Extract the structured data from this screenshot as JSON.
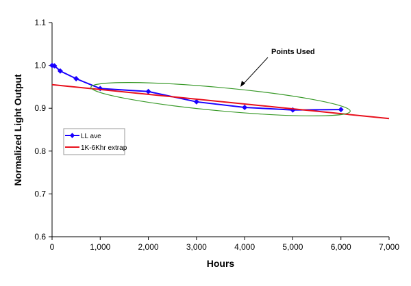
{
  "chart_data": {
    "type": "line",
    "title": "",
    "xlabel": "Hours",
    "ylabel": "Normalized Light Output",
    "xlim": [
      0,
      7000
    ],
    "ylim": [
      0.6,
      1.1
    ],
    "xticks": [
      0,
      1000,
      2000,
      3000,
      4000,
      5000,
      6000,
      7000
    ],
    "xtick_labels": [
      "0",
      "1,000",
      "2,000",
      "3,000",
      "4,000",
      "5,000",
      "6,000",
      "7,000"
    ],
    "yticks": [
      0.6,
      0.7,
      0.8,
      0.9,
      1.0,
      1.1
    ],
    "ytick_labels": [
      "0.6",
      "0.7",
      "0.8",
      "0.9",
      "1.0",
      "1.1"
    ],
    "grid": false,
    "legend_position": "middle-left",
    "series": [
      {
        "name": "LL ave",
        "color": "#1a00ff",
        "marker": "diamond",
        "x": [
          0,
          50,
          170,
          500,
          1000,
          2000,
          3000,
          4000,
          5000,
          6000
        ],
        "y": [
          1.0,
          0.999,
          0.987,
          0.969,
          0.946,
          0.939,
          0.915,
          0.902,
          0.896,
          0.897
        ]
      },
      {
        "name": "1K-6Khr extrap",
        "color": "#e8101c",
        "marker": "none",
        "x": [
          0,
          7000
        ],
        "y": [
          0.955,
          0.876
        ]
      }
    ],
    "annotations": [
      {
        "text": "Points Used",
        "type": "ellipse-callout",
        "color": "#3a9a2a",
        "x_range": [
          810,
          6190
        ]
      }
    ]
  }
}
